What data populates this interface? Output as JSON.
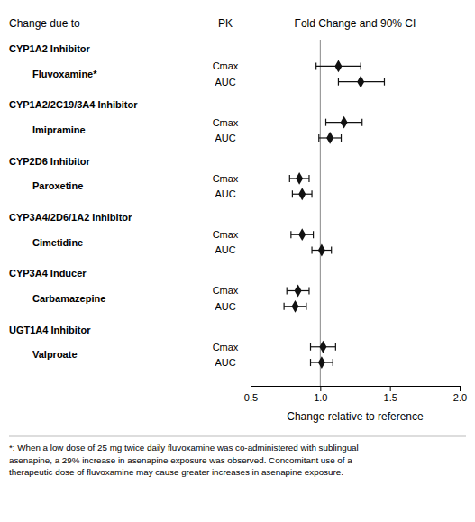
{
  "chart_data": {
    "type": "forest",
    "col_header_left": "Change due to",
    "col_header_pk": "PK",
    "col_header_right": "Fold Change and 90% CI",
    "xlabel": "Change relative to reference",
    "footnote": "*: When a low dose of 25 mg twice daily fluvoxamine was co-administered with sublingual\nasenapine, a 29% increase in asenapine exposure was observed. Concomitant use of a\ntherapeutic dose of fluvoxamine may cause greater increases in asenapine exposure.",
    "xlim": [
      0.5,
      2.0
    ],
    "xticks": [
      0.5,
      {
        "value": 1.0,
        "label": "1.0"
      },
      1.5,
      {
        "value": 2.0,
        "label": "2.0"
      }
    ],
    "reference_line": 1.0,
    "color": "#111111",
    "groups": [
      {
        "label": "CYP1A2 Inhibitor",
        "drug": "Fluvoxamine*",
        "rows": [
          {
            "pk": "Cmax",
            "est": 1.13,
            "lo": 0.97,
            "hi": 1.29
          },
          {
            "pk": "AUC",
            "est": 1.29,
            "lo": 1.13,
            "hi": 1.46
          }
        ]
      },
      {
        "label": "CYP1A2/2C19/3A4 Inhibitor",
        "drug": "Imipramine",
        "rows": [
          {
            "pk": "Cmax",
            "est": 1.17,
            "lo": 1.04,
            "hi": 1.3
          },
          {
            "pk": "AUC",
            "est": 1.07,
            "lo": 0.99,
            "hi": 1.15
          }
        ]
      },
      {
        "label": "CYP2D6 Inhibitor",
        "drug": "Paroxetine",
        "rows": [
          {
            "pk": "Cmax",
            "est": 0.85,
            "lo": 0.78,
            "hi": 0.92
          },
          {
            "pk": "AUC",
            "est": 0.87,
            "lo": 0.8,
            "hi": 0.94
          }
        ]
      },
      {
        "label": "CYP3A4/2D6/1A2 Inhibitor",
        "drug": "Cimetidine",
        "rows": [
          {
            "pk": "Cmax",
            "est": 0.87,
            "lo": 0.79,
            "hi": 0.95
          },
          {
            "pk": "AUC",
            "est": 1.01,
            "lo": 0.94,
            "hi": 1.08
          }
        ]
      },
      {
        "label": "CYP3A4 Inducer",
        "drug": "Carbamazepine",
        "rows": [
          {
            "pk": "Cmax",
            "est": 0.84,
            "lo": 0.76,
            "hi": 0.92
          },
          {
            "pk": "AUC",
            "est": 0.82,
            "lo": 0.74,
            "hi": 0.9
          }
        ]
      },
      {
        "label": "UGT1A4 Inhibitor",
        "drug": "Valproate",
        "rows": [
          {
            "pk": "Cmax",
            "est": 1.02,
            "lo": 0.93,
            "hi": 1.11
          },
          {
            "pk": "AUC",
            "est": 1.01,
            "lo": 0.93,
            "hi": 1.09
          }
        ]
      }
    ]
  }
}
